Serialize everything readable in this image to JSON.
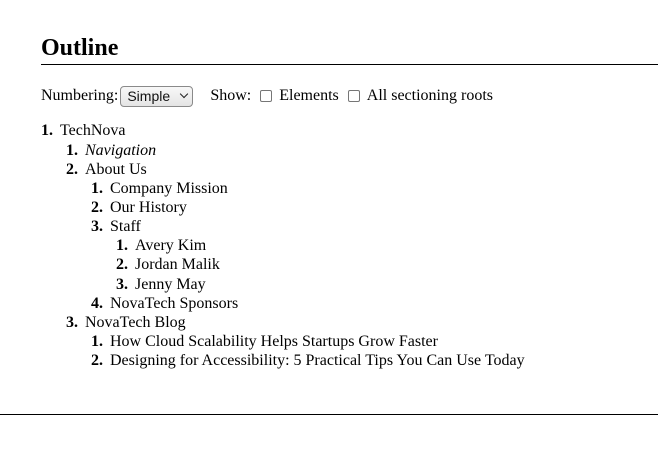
{
  "heading": "Outline",
  "controls": {
    "numbering_label": "Numbering:",
    "numbering_value": "Simple",
    "show_label": "Show:",
    "elements_label": "Elements",
    "sectioning_label": "All sectioning roots"
  },
  "outline": [
    {
      "num": "1.",
      "text": "TechNova"
    },
    {
      "num": "1.",
      "text": "Navigation"
    },
    {
      "num": "2.",
      "text": "About Us"
    },
    {
      "num": "1.",
      "text": "Company Mission"
    },
    {
      "num": "2.",
      "text": "Our History"
    },
    {
      "num": "3.",
      "text": "Staff"
    },
    {
      "num": "1.",
      "text": "Avery Kim"
    },
    {
      "num": "2.",
      "text": "Jordan Malik"
    },
    {
      "num": "3.",
      "text": "Jenny May"
    },
    {
      "num": "4.",
      "text": "NovaTech Sponsors"
    },
    {
      "num": "3.",
      "text": "NovaTech Blog"
    },
    {
      "num": "1.",
      "text": "How Cloud Scalability Helps Startups Grow Faster"
    },
    {
      "num": "2.",
      "text": "Designing for Accessibility: 5 Practical Tips You Can Use Today"
    }
  ]
}
